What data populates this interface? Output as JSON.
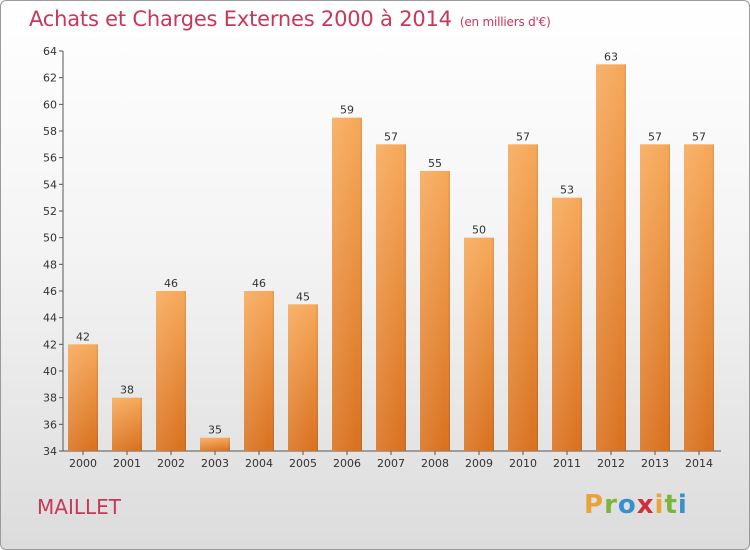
{
  "header": {
    "title": "Achats et Charges Externes 2000 à 2014",
    "subtitle": "(en milliers d'€)"
  },
  "footer": {
    "commune": "MAILLET",
    "logo_letters": [
      "P",
      "r",
      "o",
      "x",
      "i",
      "t",
      "i"
    ],
    "logo_colors": [
      "#e8a33a",
      "#7bb53a",
      "#3a8fd0",
      "#d0303a",
      "#e8a33a",
      "#7bb53a",
      "#3a8fd0"
    ]
  },
  "chart_data": {
    "type": "bar",
    "title": "Achats et Charges Externes 2000 à 2014",
    "subtitle": "(en milliers d'€)",
    "categories": [
      "2000",
      "2001",
      "2002",
      "2003",
      "2004",
      "2005",
      "2006",
      "2007",
      "2008",
      "2009",
      "2010",
      "2011",
      "2012",
      "2013",
      "2014"
    ],
    "values": [
      42,
      38,
      46,
      35,
      46,
      45,
      59,
      57,
      55,
      50,
      57,
      53,
      63,
      57,
      57
    ],
    "ylim": [
      34,
      64
    ],
    "yticks": [
      34,
      36,
      38,
      40,
      42,
      44,
      46,
      48,
      50,
      52,
      54,
      56,
      58,
      60,
      62,
      64
    ],
    "grid": false,
    "bar_color_top": "#f7a95a",
    "bar_color_bottom": "#d9711e"
  }
}
